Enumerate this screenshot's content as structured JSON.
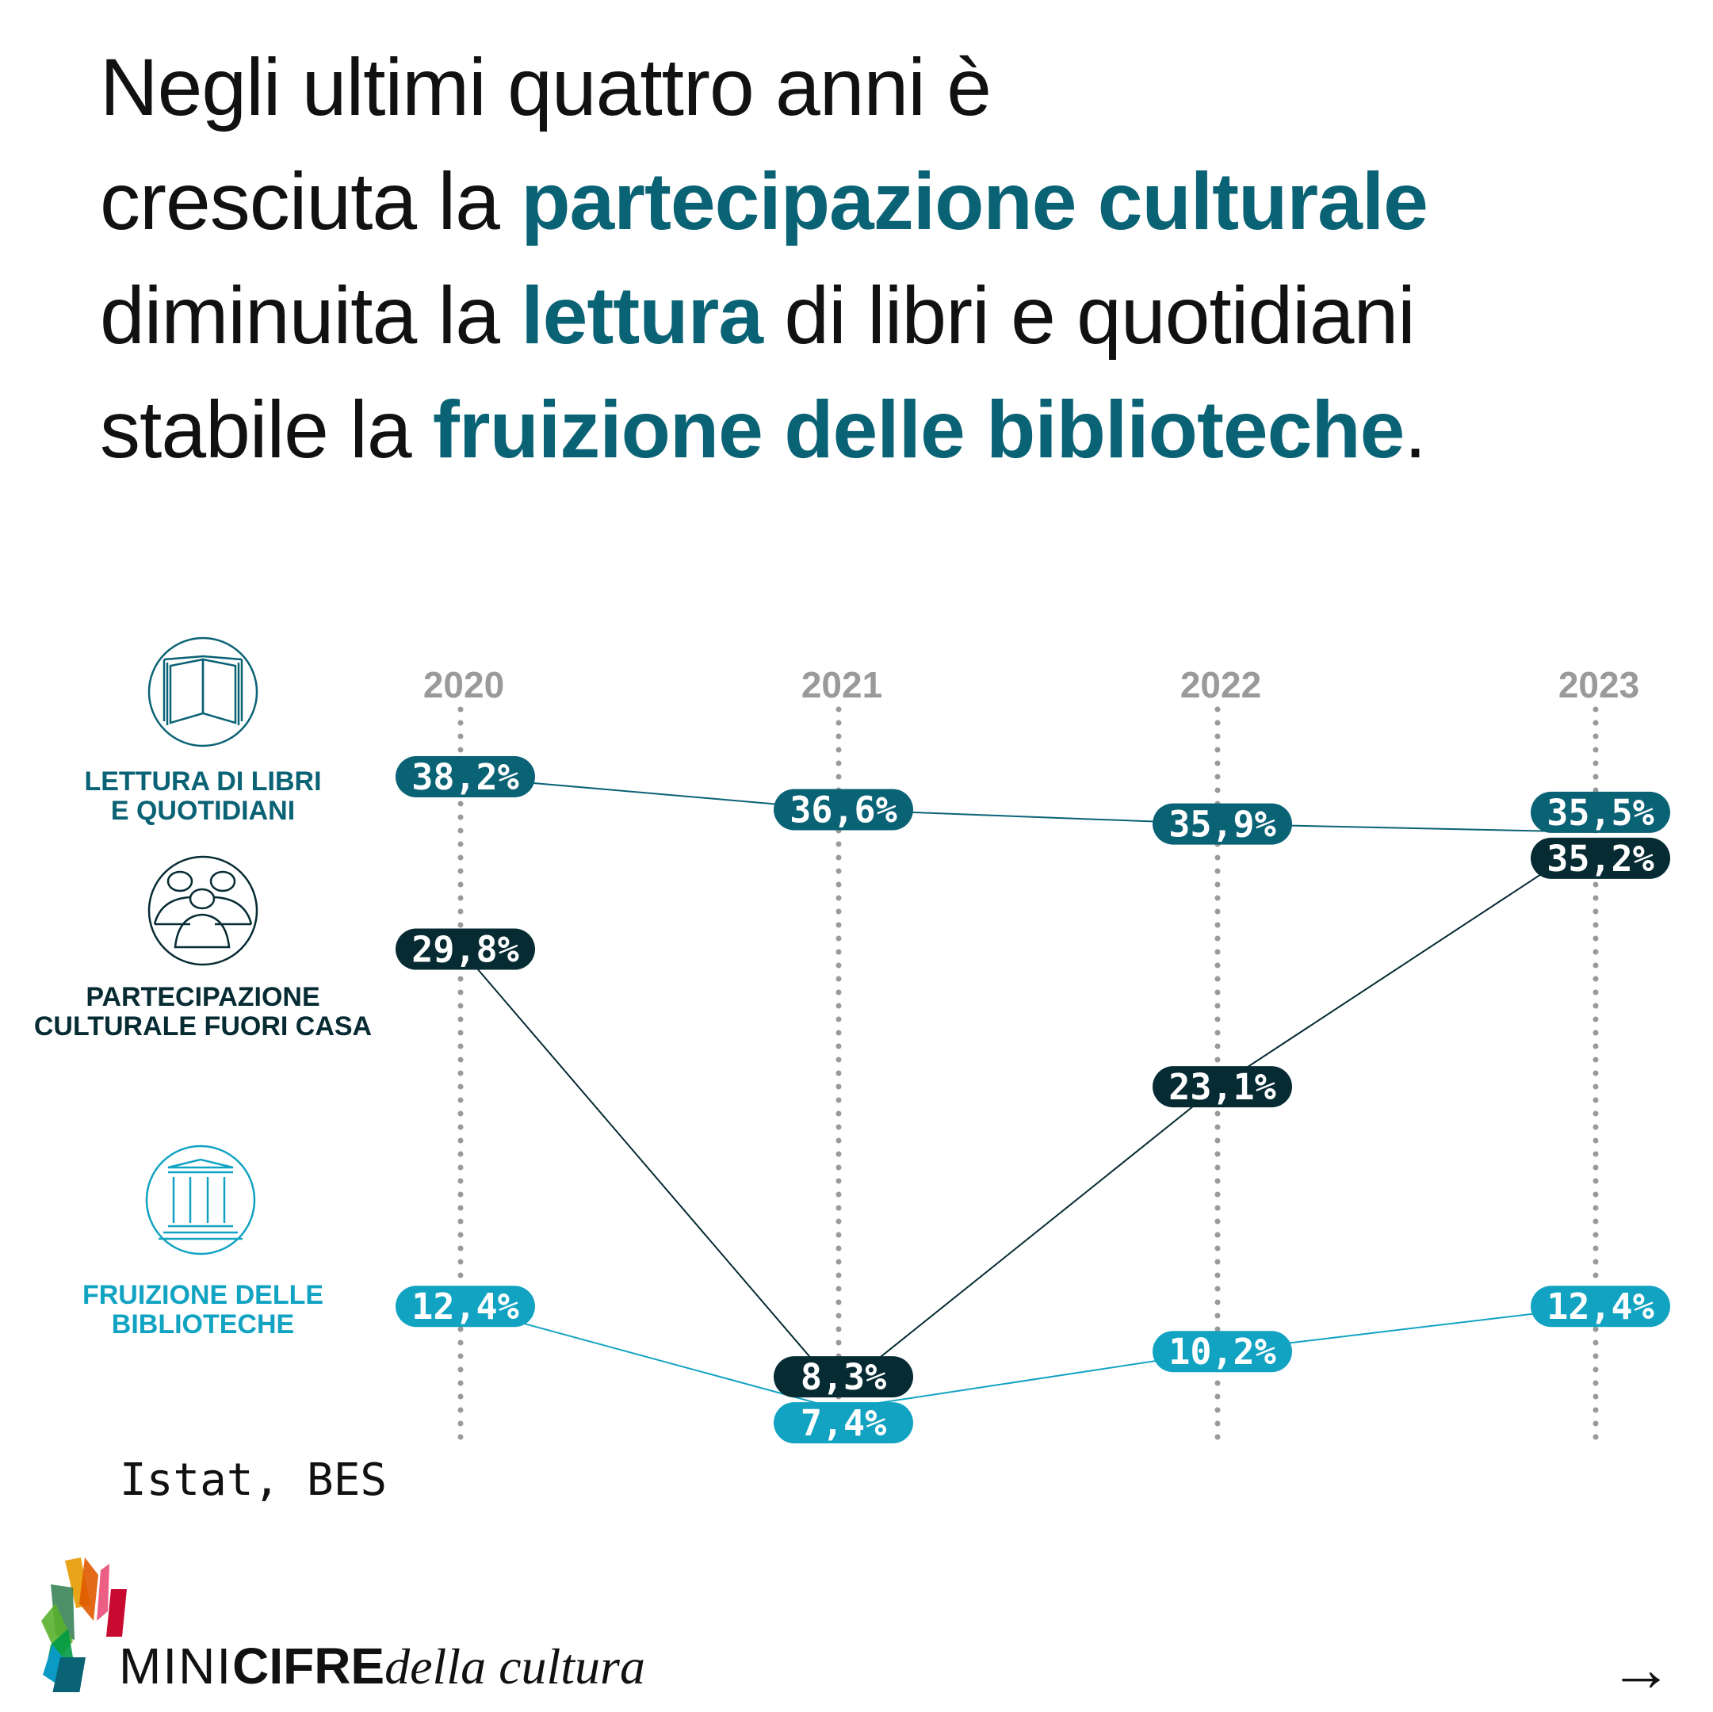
{
  "title": {
    "line1": "Negli ultimi quattro anni è",
    "line2_a": "cresciuta la ",
    "line2_b": "partecipazione culturale",
    "line3_a": "diminuita la ",
    "line3_b": "lettura",
    "line3_c": " di libri e quotidiani",
    "line4_a": "stabile la ",
    "line4_b": "fruizione delle biblioteche",
    "line4_c": "."
  },
  "categories": [
    {
      "line1": "LETTURA DI LIBRI",
      "line2": "E QUOTIDIANI",
      "icon": "open-book-icon",
      "color": "#0a6275"
    },
    {
      "line1": "PARTECIPAZIONE",
      "line2": "CULTURALE FUORI CASA",
      "icon": "people-group-icon",
      "color": "#062b33"
    },
    {
      "line1": "FRUIZIONE DELLE",
      "line2": "BIBLIOTECHE",
      "icon": "library-building-icon",
      "color": "#12a3c2"
    }
  ],
  "chart_data": {
    "type": "line",
    "categories": [
      "2020",
      "2021",
      "2022",
      "2023"
    ],
    "series": [
      {
        "name": "LETTURA DI LIBRI E QUOTIDIANI",
        "values": [
          38.2,
          36.6,
          35.9,
          35.5
        ],
        "labels": [
          "38,2%",
          "36,6%",
          "35,9%",
          "35,5%"
        ],
        "color": "#0a6275"
      },
      {
        "name": "PARTECIPAZIONE CULTURALE FUORI CASA",
        "values": [
          29.8,
          8.3,
          23.1,
          35.2
        ],
        "labels": [
          "29,8%",
          "8,3%",
          "23,1%",
          "35,2%"
        ],
        "color": "#062b33"
      },
      {
        "name": "FRUIZIONE DELLE BIBLIOTECHE",
        "values": [
          12.4,
          7.4,
          10.2,
          12.4
        ],
        "labels": [
          "12,4%",
          "7,4%",
          "10,2%",
          "12,4%"
        ],
        "color": "#12a3c2"
      }
    ],
    "unit": "%",
    "grid": "dotted vertical lines per year",
    "year_color": "#9a9a9a"
  },
  "source": "Istat, BES",
  "logo": {
    "part1": "MINI",
    "part2": "CIFRE",
    "part3": "della cultura"
  },
  "nav": {
    "next_icon": "arrow-right-icon",
    "next": "→"
  }
}
